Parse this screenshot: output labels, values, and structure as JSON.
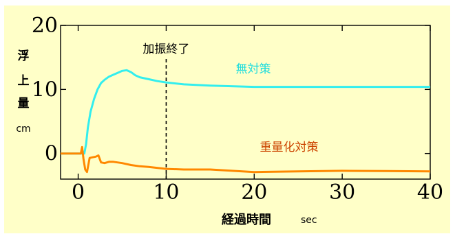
{
  "chart_data": {
    "type": "line",
    "xlim": [
      -2,
      40
    ],
    "ylim": [
      -4,
      20
    ],
    "x_ticks": [
      0,
      10,
      20,
      30,
      40
    ],
    "x_tick_labels": [
      "0",
      "10",
      "20",
      "30",
      "40"
    ],
    "y_ticks": [
      0,
      10,
      20
    ],
    "y_tick_labels": [
      "0",
      "10",
      "20"
    ],
    "xlabel": "経過時間",
    "xlabel_unit": "sec",
    "ylabel": [
      "浮",
      "上",
      "量"
    ],
    "ylabel_unit": "cm",
    "annotation_line": {
      "x": 10,
      "label": "加振終了"
    },
    "series": [
      {
        "name": "無対策",
        "color": "#33eeee",
        "x": [
          -2,
          0.7,
          0.9,
          1.1,
          1.4,
          1.8,
          2.2,
          2.6,
          3.0,
          3.5,
          4.0,
          4.5,
          5.0,
          5.5,
          6.0,
          6.5,
          7.0,
          8.0,
          9.0,
          10,
          12,
          15,
          20,
          25,
          30,
          35,
          40
        ],
        "values": [
          0,
          0,
          1.5,
          4.0,
          6.5,
          8.5,
          10.0,
          11.0,
          11.5,
          12.0,
          12.3,
          12.6,
          12.9,
          13.0,
          12.7,
          12.2,
          11.9,
          11.6,
          11.3,
          11.1,
          10.8,
          10.6,
          10.4,
          10.4,
          10.4,
          10.4,
          10.4
        ]
      },
      {
        "name": "重量化対策",
        "color": "#ff8800",
        "x": [
          -2,
          0.3,
          0.45,
          0.6,
          0.8,
          1.0,
          1.3,
          1.6,
          2.0,
          2.3,
          2.6,
          3.0,
          3.5,
          4.0,
          5.0,
          6.0,
          7.0,
          8.0,
          10,
          12,
          15,
          20,
          25,
          30,
          35,
          40
        ],
        "values": [
          0,
          0,
          1.0,
          -0.8,
          -2.5,
          -2.9,
          -0.7,
          -0.6,
          -0.5,
          -0.3,
          -1.4,
          -1.5,
          -1.3,
          -1.3,
          -1.5,
          -1.8,
          -2.0,
          -2.1,
          -2.4,
          -2.5,
          -2.5,
          -2.9,
          -2.8,
          -2.7,
          -2.75,
          -2.8
        ]
      }
    ]
  }
}
